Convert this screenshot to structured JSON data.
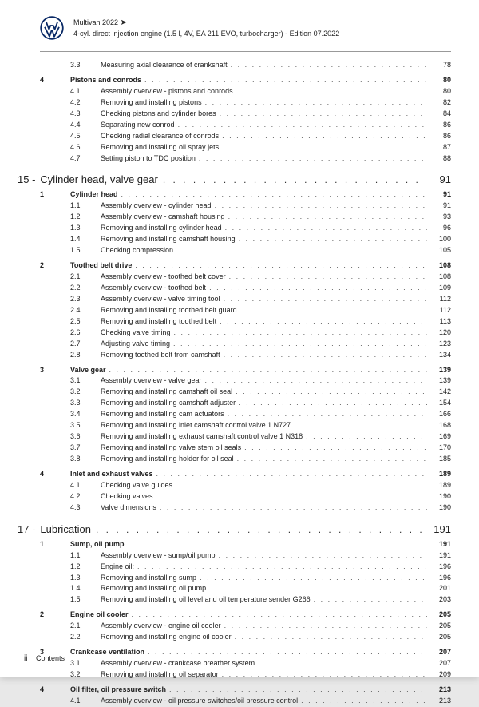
{
  "header": {
    "model": "Multivan 2022",
    "subtitle": "4-cyl. direct injection engine (1.5 l, 4V, EA 211 EVO, turbocharger) - Edition 07.2022"
  },
  "footer": {
    "pageRoman": "ii",
    "label": "Contents"
  },
  "logoColor": "#0a2a66",
  "toc": [
    {
      "type": "sub",
      "num": "3.3",
      "label": "Measuring axial clearance of crankshaft",
      "page": "78"
    },
    {
      "type": "sec",
      "num": "4",
      "label": "Pistons and conrods",
      "page": "80"
    },
    {
      "type": "sub",
      "num": "4.1",
      "label": "Assembly overview - pistons and conrods",
      "page": "80"
    },
    {
      "type": "sub",
      "num": "4.2",
      "label": "Removing and installing pistons",
      "page": "82"
    },
    {
      "type": "sub",
      "num": "4.3",
      "label": "Checking pistons and cylinder bores",
      "page": "84"
    },
    {
      "type": "sub",
      "num": "4.4",
      "label": "Separating new conrod",
      "page": "86"
    },
    {
      "type": "sub",
      "num": "4.5",
      "label": "Checking radial clearance of conrods",
      "page": "86"
    },
    {
      "type": "sub",
      "num": "4.6",
      "label": "Removing and installing oil spray jets",
      "page": "87"
    },
    {
      "type": "sub",
      "num": "4.7",
      "label": "Setting piston to TDC position",
      "page": "88"
    },
    {
      "type": "chap",
      "num": "15 -",
      "label": "Cylinder head, valve gear",
      "page": "91"
    },
    {
      "type": "sec",
      "num": "1",
      "label": "Cylinder head",
      "page": "91"
    },
    {
      "type": "sub",
      "num": "1.1",
      "label": "Assembly overview - cylinder head",
      "page": "91"
    },
    {
      "type": "sub",
      "num": "1.2",
      "label": "Assembly overview - camshaft housing",
      "page": "93"
    },
    {
      "type": "sub",
      "num": "1.3",
      "label": "Removing and installing cylinder head",
      "page": "96"
    },
    {
      "type": "sub",
      "num": "1.4",
      "label": "Removing and installing camshaft housing",
      "page": "100"
    },
    {
      "type": "sub",
      "num": "1.5",
      "label": "Checking compression",
      "page": "105"
    },
    {
      "type": "sec",
      "num": "2",
      "label": "Toothed belt drive",
      "page": "108"
    },
    {
      "type": "sub",
      "num": "2.1",
      "label": "Assembly overview - toothed belt cover",
      "page": "108"
    },
    {
      "type": "sub",
      "num": "2.2",
      "label": "Assembly overview - toothed belt",
      "page": "109"
    },
    {
      "type": "sub",
      "num": "2.3",
      "label": "Assembly overview - valve timing tool",
      "page": "112"
    },
    {
      "type": "sub",
      "num": "2.4",
      "label": "Removing and installing toothed belt guard",
      "page": "112"
    },
    {
      "type": "sub",
      "num": "2.5",
      "label": "Removing and installing toothed belt",
      "page": "113"
    },
    {
      "type": "sub",
      "num": "2.6",
      "label": "Checking valve timing",
      "page": "120"
    },
    {
      "type": "sub",
      "num": "2.7",
      "label": "Adjusting valve timing",
      "page": "123"
    },
    {
      "type": "sub",
      "num": "2.8",
      "label": "Removing toothed belt from camshaft",
      "page": "134"
    },
    {
      "type": "sec",
      "num": "3",
      "label": "Valve gear",
      "page": "139"
    },
    {
      "type": "sub",
      "num": "3.1",
      "label": "Assembly overview - valve gear",
      "page": "139"
    },
    {
      "type": "sub",
      "num": "3.2",
      "label": "Removing and installing camshaft oil seal",
      "page": "142"
    },
    {
      "type": "sub",
      "num": "3.3",
      "label": "Removing and installing camshaft adjuster",
      "page": "154"
    },
    {
      "type": "sub",
      "num": "3.4",
      "label": "Removing and installing cam actuators",
      "page": "166"
    },
    {
      "type": "sub",
      "num": "3.5",
      "label": "Removing and installing inlet camshaft control valve 1 N727",
      "page": "168"
    },
    {
      "type": "sub",
      "num": "3.6",
      "label": "Removing and installing exhaust camshaft control valve 1 N318",
      "page": "169"
    },
    {
      "type": "sub",
      "num": "3.7",
      "label": "Removing and installing valve stem oil seals",
      "page": "170"
    },
    {
      "type": "sub",
      "num": "3.8",
      "label": "Removing and installing holder for oil seal",
      "page": "185"
    },
    {
      "type": "sec",
      "num": "4",
      "label": "Inlet and exhaust valves",
      "page": "189"
    },
    {
      "type": "sub",
      "num": "4.1",
      "label": "Checking valve guides",
      "page": "189"
    },
    {
      "type": "sub",
      "num": "4.2",
      "label": "Checking valves",
      "page": "190"
    },
    {
      "type": "sub",
      "num": "4.3",
      "label": "Valve dimensions",
      "page": "190"
    },
    {
      "type": "chap",
      "num": "17 -",
      "label": "Lubrication",
      "page": "191"
    },
    {
      "type": "sec",
      "num": "1",
      "label": "Sump, oil pump",
      "page": "191"
    },
    {
      "type": "sub",
      "num": "1.1",
      "label": "Assembly overview - sump/oil pump",
      "page": "191"
    },
    {
      "type": "sub",
      "num": "1.2",
      "label": "Engine oil:",
      "page": "196"
    },
    {
      "type": "sub",
      "num": "1.3",
      "label": "Removing and installing sump",
      "page": "196"
    },
    {
      "type": "sub",
      "num": "1.4",
      "label": "Removing and installing oil pump",
      "page": "201"
    },
    {
      "type": "sub",
      "num": "1.5",
      "label": "Removing and installing oil level and oil temperature sender G266",
      "page": "203"
    },
    {
      "type": "sec",
      "num": "2",
      "label": "Engine oil cooler",
      "page": "205"
    },
    {
      "type": "sub",
      "num": "2.1",
      "label": "Assembly overview - engine oil cooler",
      "page": "205"
    },
    {
      "type": "sub",
      "num": "2.2",
      "label": "Removing and installing engine oil cooler",
      "page": "205"
    },
    {
      "type": "sec",
      "num": "3",
      "label": "Crankcase ventilation",
      "page": "207"
    },
    {
      "type": "sub",
      "num": "3.1",
      "label": "Assembly overview - crankcase breather system",
      "page": "207"
    },
    {
      "type": "sub",
      "num": "3.2",
      "label": "Removing and installing oil separator",
      "page": "209"
    },
    {
      "type": "sec",
      "num": "4",
      "label": "Oil filter, oil pressure switch",
      "page": "213"
    },
    {
      "type": "sub",
      "num": "4.1",
      "label": "Assembly overview - oil pressure switches/oil pressure control",
      "page": "213"
    }
  ]
}
